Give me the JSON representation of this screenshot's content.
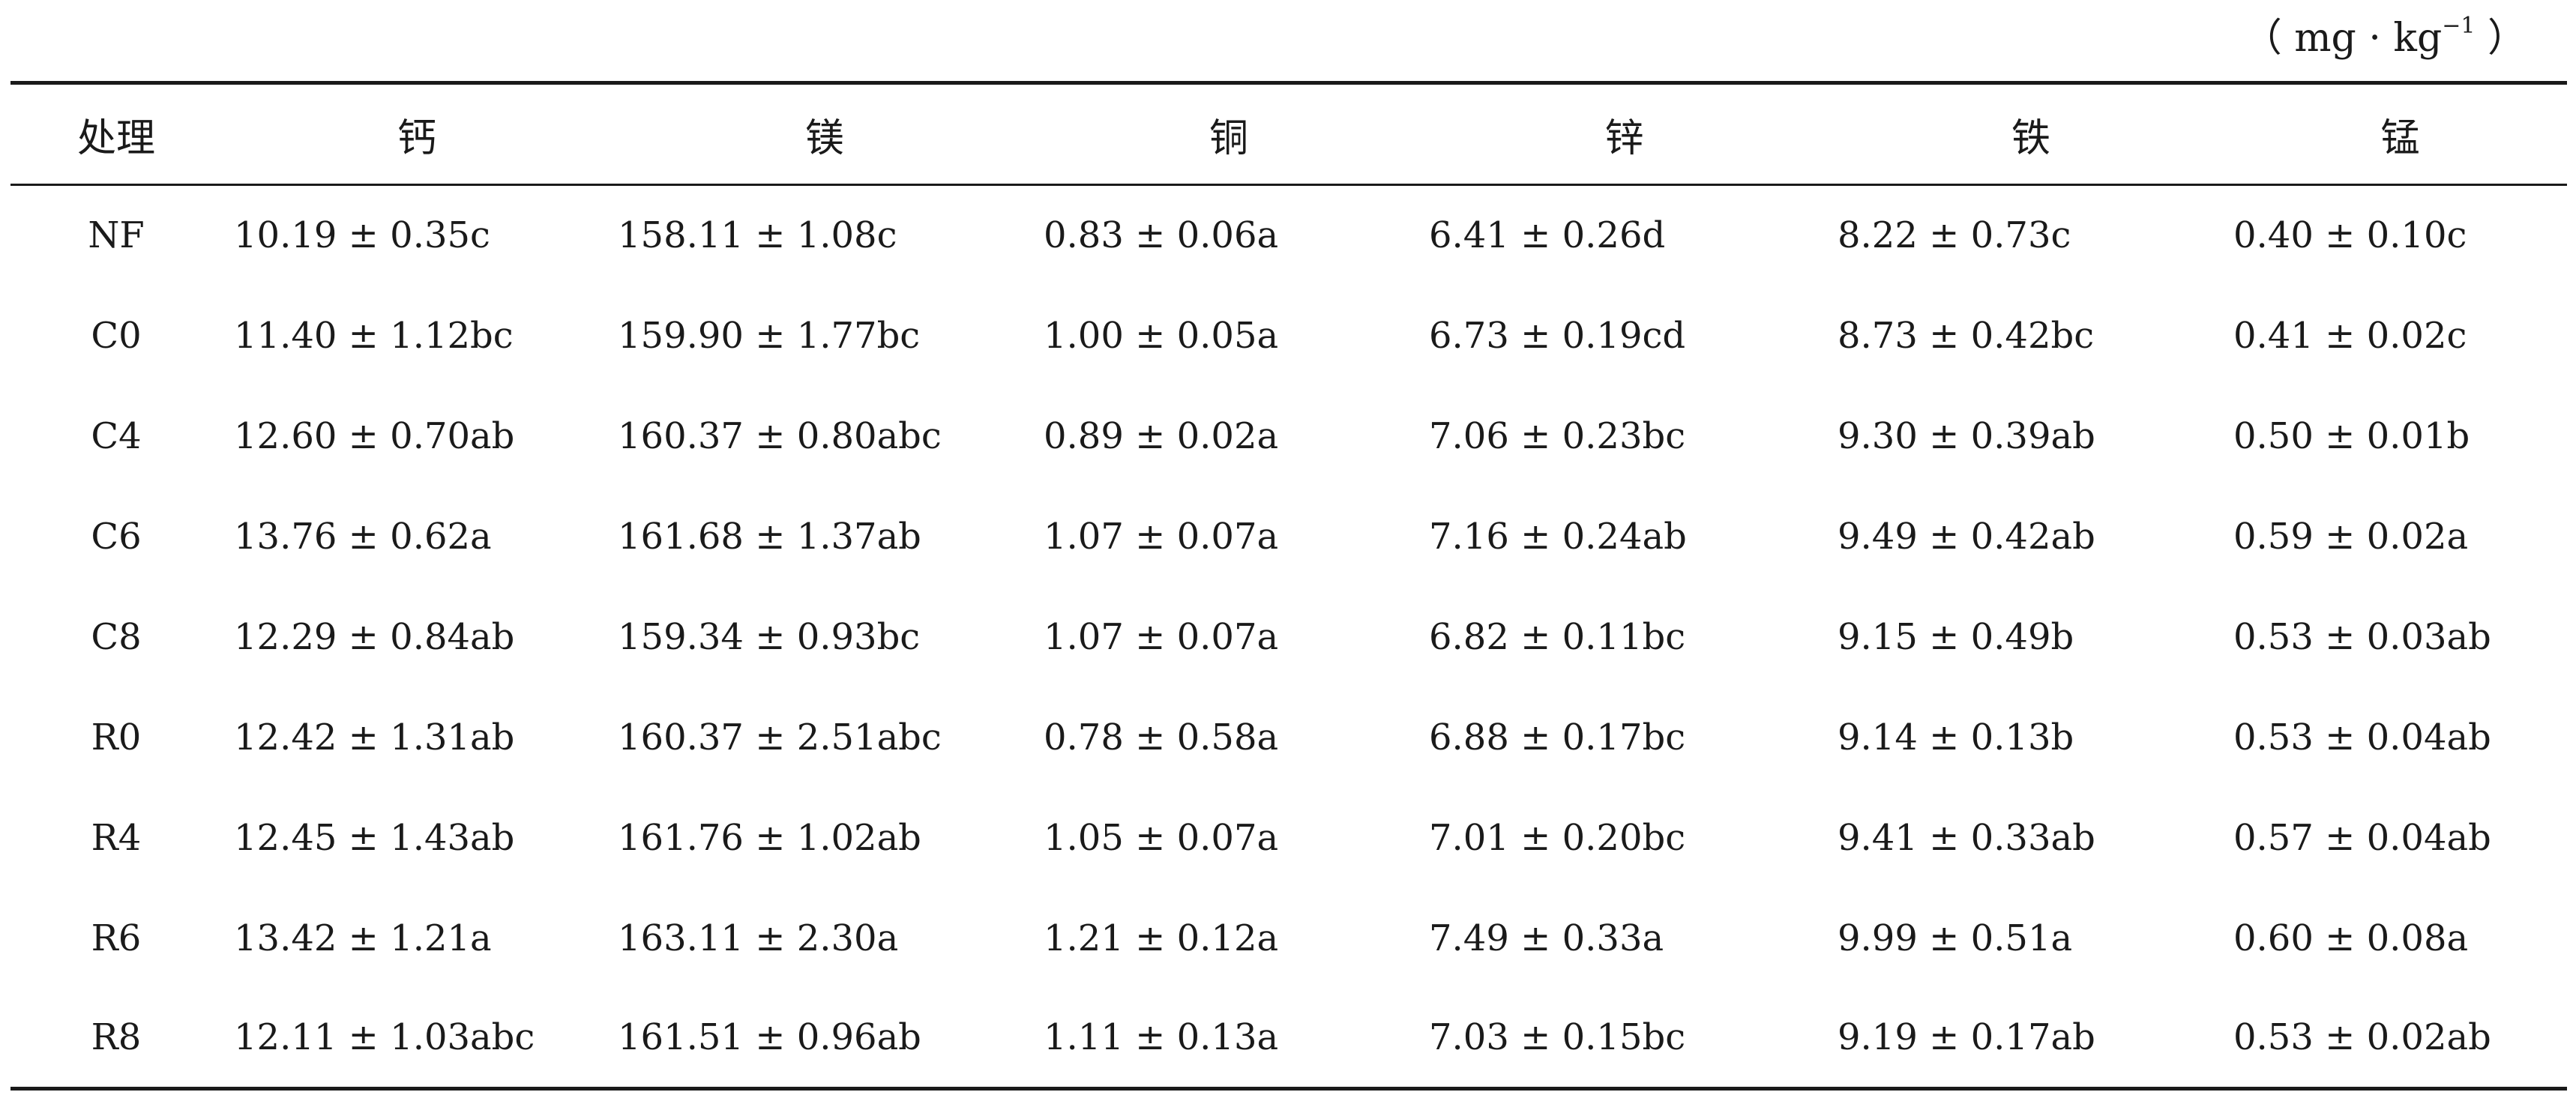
{
  "unit": {
    "open": "（ mg · kg",
    "exp": "−1",
    "close": " ）"
  },
  "table": {
    "headers": [
      "处理",
      "钙",
      "镁",
      "铜",
      "锌",
      "铁",
      "锰"
    ],
    "rows": [
      [
        "NF",
        "10.19 ± 0.35c",
        "158.11 ± 1.08c",
        "0.83 ± 0.06a",
        "6.41 ± 0.26d",
        "8.22 ± 0.73c",
        "0.40 ± 0.10c"
      ],
      [
        "C0",
        "11.40 ± 1.12bc",
        "159.90 ± 1.77bc",
        "1.00 ± 0.05a",
        "6.73 ± 0.19cd",
        "8.73 ± 0.42bc",
        "0.41 ± 0.02c"
      ],
      [
        "C4",
        "12.60 ± 0.70ab",
        "160.37 ± 0.80abc",
        "0.89 ± 0.02a",
        "7.06 ± 0.23bc",
        "9.30 ± 0.39ab",
        "0.50 ± 0.01b"
      ],
      [
        "C6",
        "13.76 ± 0.62a",
        "161.68 ± 1.37ab",
        "1.07 ± 0.07a",
        "7.16 ± 0.24ab",
        "9.49 ± 0.42ab",
        "0.59 ± 0.02a"
      ],
      [
        "C8",
        "12.29 ± 0.84ab",
        "159.34 ± 0.93bc",
        "1.07 ± 0.07a",
        "6.82 ± 0.11bc",
        "9.15 ± 0.49b",
        "0.53 ± 0.03ab"
      ],
      [
        "R0",
        "12.42 ± 1.31ab",
        "160.37 ± 2.51abc",
        "0.78 ± 0.58a",
        "6.88 ± 0.17bc",
        "9.14 ± 0.13b",
        "0.53 ± 0.04ab"
      ],
      [
        "R4",
        "12.45 ± 1.43ab",
        "161.76 ± 1.02ab",
        "1.05 ± 0.07a",
        "7.01 ± 0.20bc",
        "9.41 ± 0.33ab",
        "0.57 ± 0.04ab"
      ],
      [
        "R6",
        "13.42 ± 1.21a",
        "163.11 ± 2.30a",
        "1.21 ± 0.12a",
        "7.49 ± 0.33a",
        "9.99 ± 0.51a",
        "0.60 ± 0.08a"
      ],
      [
        "R8",
        "12.11 ± 1.03abc",
        "161.51 ± 0.96ab",
        "1.11 ± 0.13a",
        "7.03 ± 0.15bc",
        "9.19 ± 0.17ab",
        "0.53 ± 0.02ab"
      ]
    ]
  }
}
